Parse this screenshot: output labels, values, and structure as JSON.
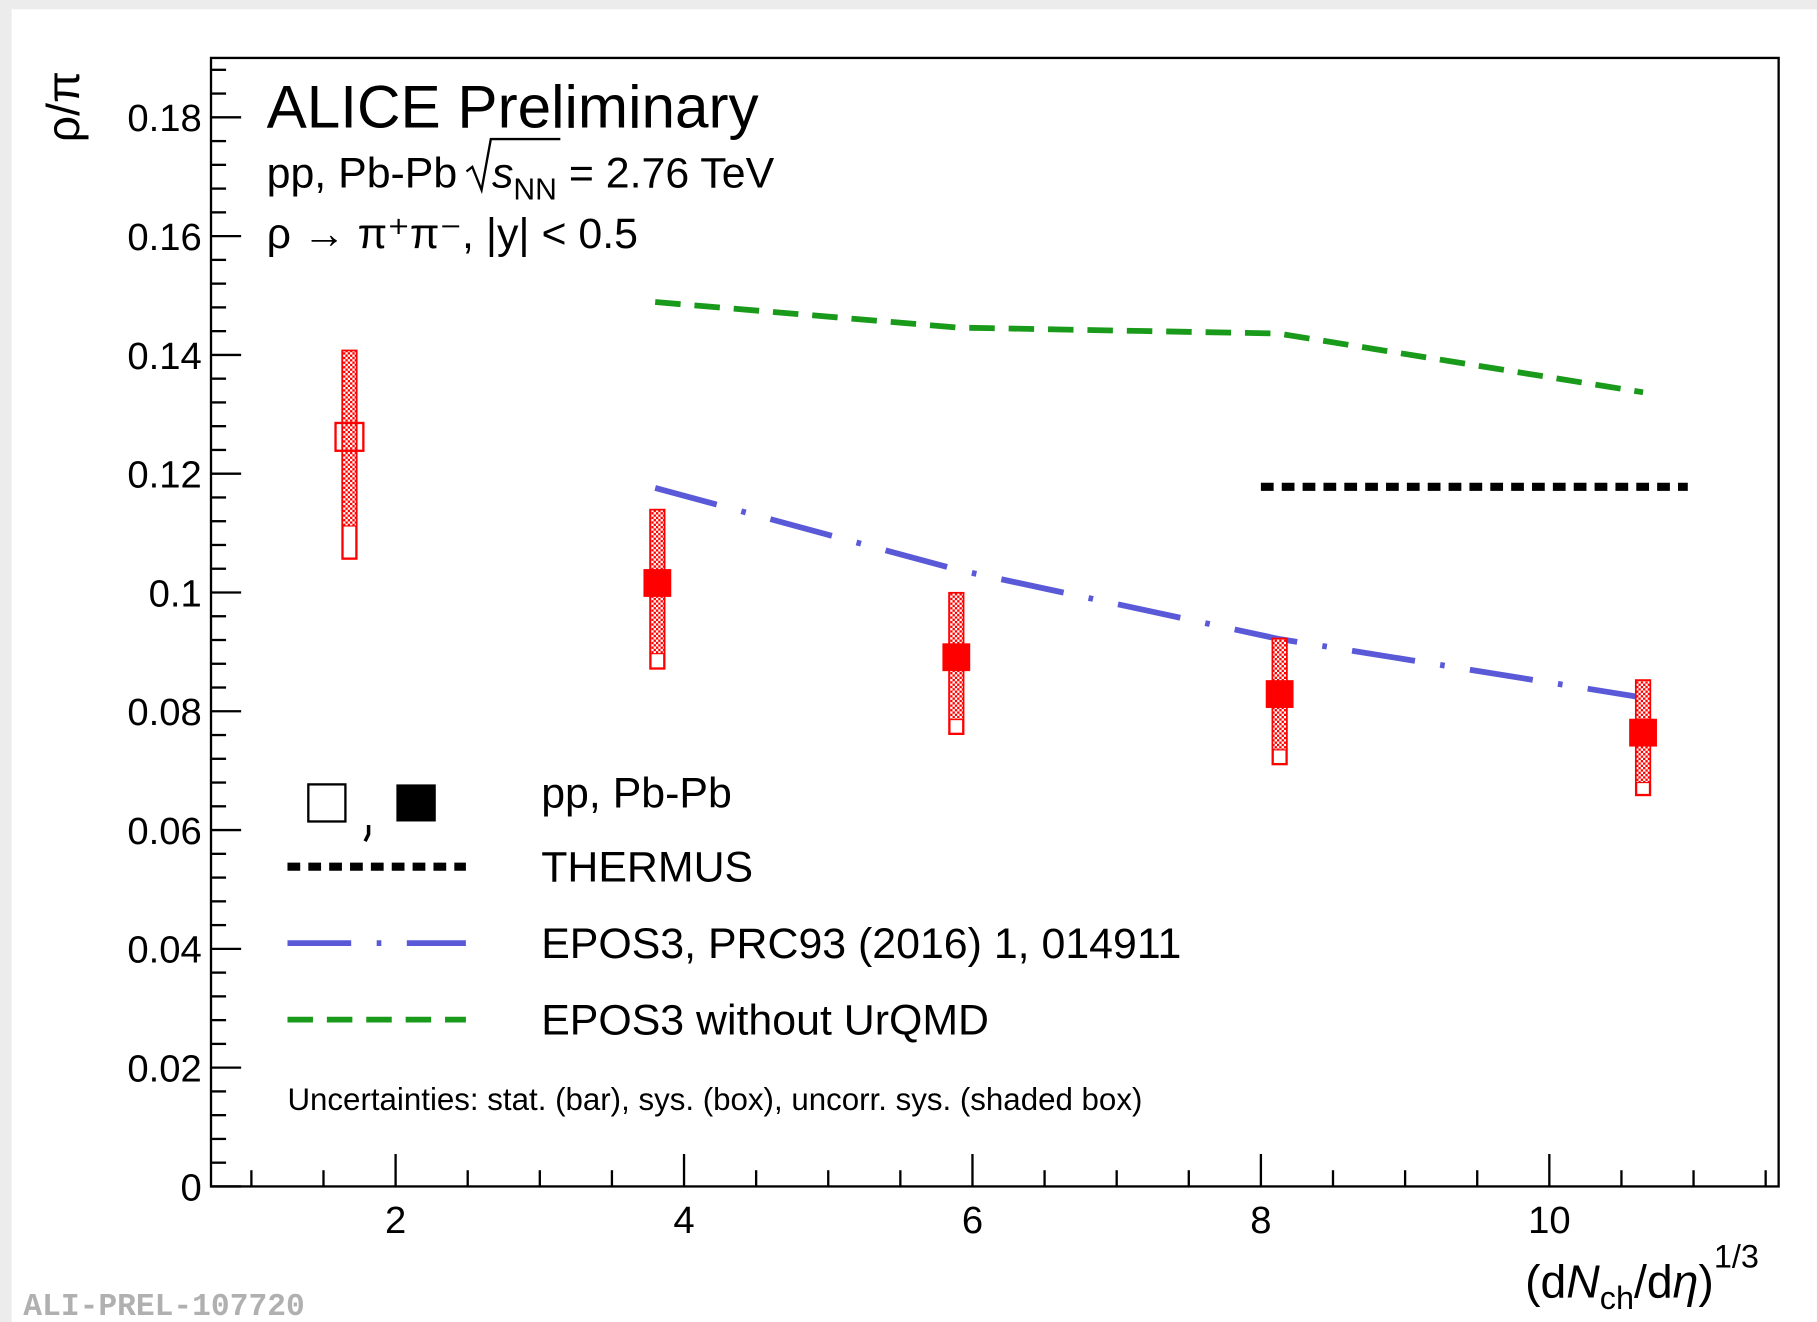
{
  "chart_data": {
    "type": "scatter",
    "title": "ALICE Preliminary",
    "subtitle": {
      "prefix": "pp, Pb-Pb",
      "var": "s",
      "sub": "NN",
      "suffix": " = 2.76 TeV"
    },
    "decay": "ρ → π⁺π⁻, |y| < 0.5",
    "note": "Uncertainties: stat. (bar), sys. (box), uncorr. sys. (shaded box)",
    "watermark": "ALI-PREL-107720",
    "ylabel": "ρ/π",
    "xlabel": [
      "(d",
      "N",
      "ch",
      "/d",
      "η",
      ")",
      "1/3"
    ],
    "xlim": [
      0.72,
      11.59
    ],
    "ylim": [
      0,
      0.19
    ],
    "xticks": [
      2,
      4,
      6,
      8,
      10
    ],
    "yticks": [
      0,
      0.02,
      0.04,
      0.06,
      0.08,
      0.1,
      0.12,
      0.14,
      0.16,
      0.18
    ],
    "points_legend": "pp, Pb-Pb",
    "points": [
      {
        "marker": "open",
        "color": "#ff0000",
        "x": [
          1.68
        ],
        "values": [
          0.1262
        ],
        "sys_low": [
          0.1057
        ],
        "sys_high": [
          0.1407
        ],
        "uncorr_low": [
          0.1112
        ],
        "uncorr_high": [
          0.1407
        ]
      },
      {
        "marker": "filled",
        "color": "#ff0000",
        "x": [
          3.815,
          5.888,
          8.13,
          10.65
        ],
        "values": [
          0.1016,
          0.0891,
          0.0829,
          0.0764
        ],
        "sys_low": [
          0.0872,
          0.0762,
          0.0711,
          0.0659
        ],
        "sys_high": [
          0.1139,
          0.0999,
          0.0922,
          0.0852
        ],
        "uncorr_low": [
          0.0897,
          0.0786,
          0.0735,
          0.068
        ],
        "uncorr_high": [
          0.1139,
          0.0999,
          0.0922,
          0.0852
        ]
      }
    ],
    "series": [
      {
        "name": "THERMUS",
        "dash": "dotted",
        "color": "#000000",
        "x": [
          8.0,
          10.96
        ],
        "values": [
          0.1178,
          0.1178
        ]
      },
      {
        "name": "EPOS3, PRC93 (2016) 1, 014911",
        "dash": "dashdot",
        "color": "#5a5ad8",
        "x": [
          3.8,
          5.9,
          8.12,
          10.65
        ],
        "values": [
          0.1176,
          0.1038,
          0.0922,
          0.0823
        ]
      },
      {
        "name": "EPOS3 without UrQMD",
        "dash": "dashed",
        "color": "#1a9a1a",
        "x": [
          3.8,
          5.9,
          8.12,
          10.65
        ],
        "values": [
          0.1489,
          0.1446,
          0.1436,
          0.1337
        ]
      }
    ]
  }
}
